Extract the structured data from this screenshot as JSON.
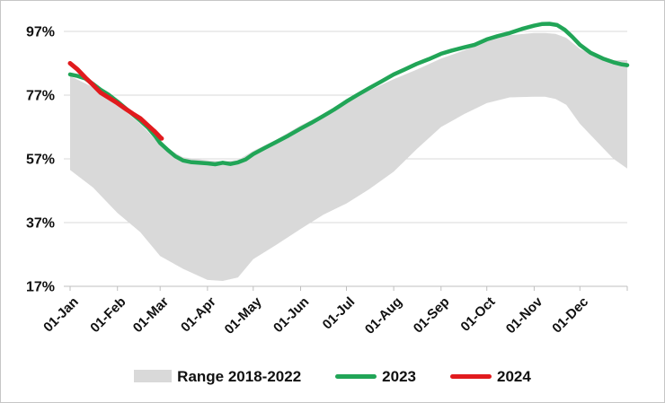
{
  "chart_data": {
    "type": "line",
    "title": "",
    "xlabel": "",
    "ylabel": "",
    "grid": true,
    "legend_position": "bottom",
    "y_axis": {
      "range": [
        17,
        97
      ],
      "ticks": [
        {
          "value": 97,
          "label": "97%"
        },
        {
          "value": 77,
          "label": "77%"
        },
        {
          "value": 57,
          "label": "57%"
        },
        {
          "value": 37,
          "label": "37%"
        },
        {
          "value": 17,
          "label": "17%"
        }
      ]
    },
    "x_axis": {
      "unit": "day-of-year",
      "range": [
        0,
        365
      ],
      "ticks": [
        {
          "day": 0,
          "label": "01-Jan"
        },
        {
          "day": 31,
          "label": "01-Feb"
        },
        {
          "day": 59,
          "label": "01-Mar"
        },
        {
          "day": 90,
          "label": "01-Apr"
        },
        {
          "day": 120,
          "label": "01-May"
        },
        {
          "day": 151,
          "label": "01-Jun"
        },
        {
          "day": 181,
          "label": "01-Jul"
        },
        {
          "day": 212,
          "label": "01-Aug"
        },
        {
          "day": 243,
          "label": "01-Sep"
        },
        {
          "day": 273,
          "label": "01-Oct"
        },
        {
          "day": 304,
          "label": "01-Nov"
        },
        {
          "day": 334,
          "label": "01-Dec"
        }
      ]
    },
    "band": {
      "name": "Range 2018-2022",
      "color": "#d9d9d9",
      "days": [
        0,
        15,
        31,
        46,
        59,
        74,
        90,
        100,
        110,
        120,
        135,
        151,
        166,
        181,
        196,
        212,
        227,
        243,
        258,
        273,
        288,
        304,
        311,
        318,
        325,
        334,
        341,
        349,
        356,
        365
      ],
      "upper": [
        83,
        79.5,
        74,
        68,
        61.5,
        57.5,
        56.5,
        56.2,
        56.6,
        59.5,
        63,
        67.5,
        71,
        75.5,
        78.5,
        82,
        85,
        88.5,
        91,
        94,
        95.8,
        96.5,
        96.5,
        96.2,
        95,
        91.5,
        90,
        88.5,
        88,
        88
      ],
      "lower": [
        53.5,
        48,
        40,
        34,
        26.5,
        22.5,
        19,
        18.7,
        19.8,
        25.5,
        30,
        35,
        39.5,
        43,
        47.5,
        53,
        60,
        67,
        71,
        74.5,
        76.3,
        76.5,
        76.5,
        75.8,
        74,
        68,
        64.5,
        60.5,
        57,
        54
      ]
    },
    "series": [
      {
        "name": "2023",
        "color": "#21a557",
        "stroke_width": 4.5,
        "days": [
          0,
          5,
          10,
          15,
          20,
          25,
          31,
          36,
          41,
          46,
          51,
          56,
          59,
          64,
          69,
          74,
          79,
          84,
          90,
          95,
          100,
          105,
          110,
          115,
          120,
          127,
          135,
          143,
          151,
          158,
          166,
          173,
          181,
          188,
          196,
          204,
          212,
          219,
          227,
          235,
          243,
          250,
          258,
          265,
          273,
          280,
          288,
          296,
          304,
          309,
          314,
          319,
          324,
          329,
          334,
          341,
          349,
          356,
          361,
          365
        ],
        "values": [
          83.5,
          83,
          82.2,
          80.5,
          78.7,
          77.2,
          75,
          73,
          71,
          69,
          66.8,
          64,
          62,
          59.8,
          57.8,
          56.5,
          56,
          55.8,
          55.6,
          55.3,
          55.8,
          55.4,
          55.9,
          56.8,
          58.5,
          60.3,
          62.3,
          64.3,
          66.5,
          68.3,
          70.5,
          72.5,
          75,
          77,
          79.2,
          81.3,
          83.5,
          85,
          86.8,
          88.3,
          90,
          91,
          92,
          92.8,
          94.5,
          95.5,
          96.5,
          97.8,
          98.8,
          99.3,
          99.4,
          99,
          97.5,
          95.3,
          92.8,
          90.3,
          88.5,
          87.3,
          86.7,
          86.4
        ]
      },
      {
        "name": "2024",
        "color": "#e11b1e",
        "stroke_width": 5,
        "days": [
          0,
          5,
          10,
          15,
          20,
          25,
          31,
          36,
          41,
          46,
          51,
          55,
          57,
          59,
          60
        ],
        "values": [
          87,
          85,
          82.5,
          80.2,
          77.8,
          76.3,
          74.5,
          72.8,
          71.2,
          69.7,
          67.5,
          65.8,
          64.8,
          63.8,
          63.4
        ]
      }
    ],
    "legend": [
      {
        "label": "Range 2018-2022",
        "swatch": "band",
        "color": "#d9d9d9"
      },
      {
        "label": "2023",
        "swatch": "line",
        "color": "#21a557"
      },
      {
        "label": "2024",
        "swatch": "line",
        "color": "#e11b1e"
      }
    ],
    "colors": {
      "gridline": "#d9d9d9",
      "axis": "#bfbfbf",
      "text": "#111111",
      "background": "#ffffff"
    }
  }
}
